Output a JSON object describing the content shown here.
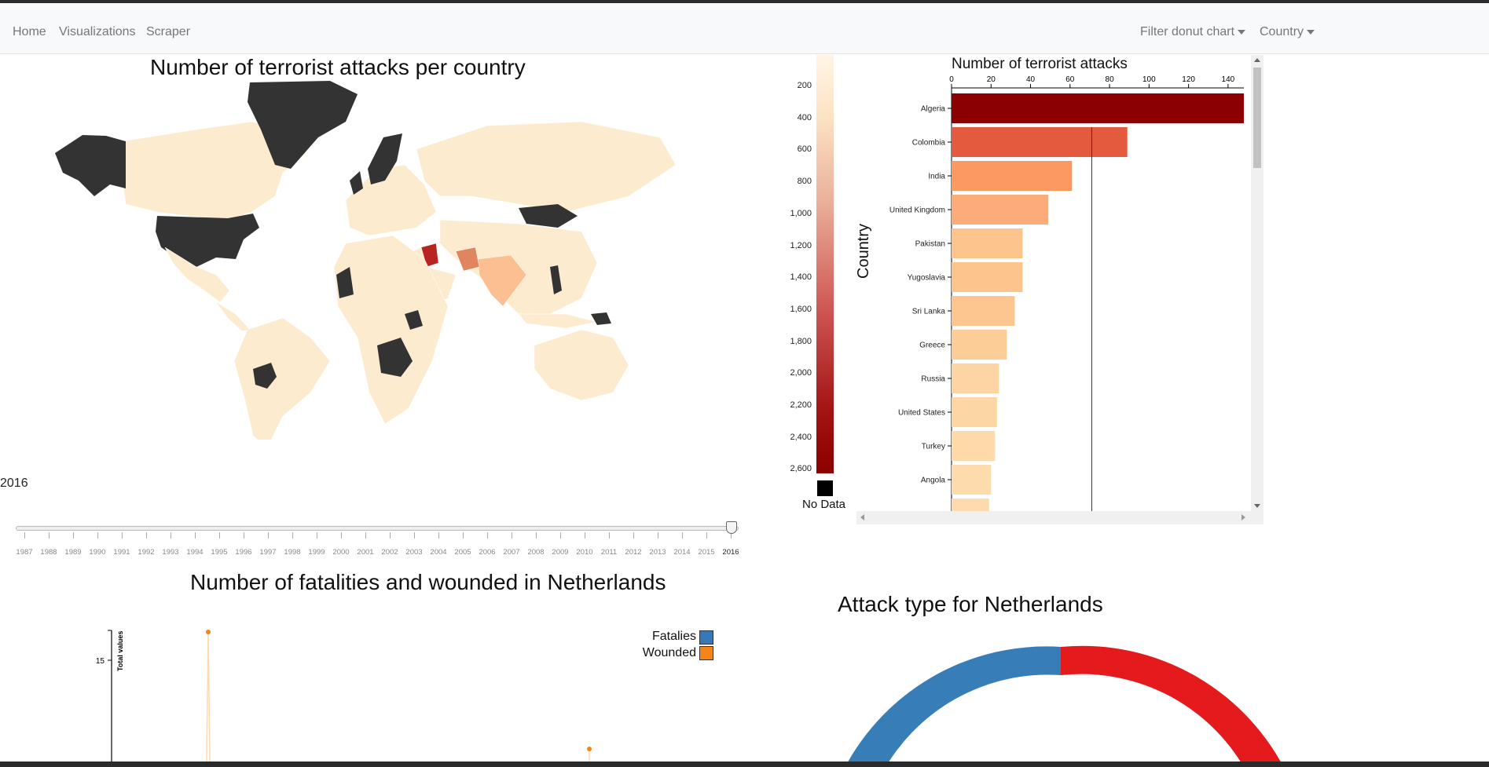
{
  "nav": {
    "home": "Home",
    "visualizations": "Visualizations",
    "scraper": "Scraper",
    "filter_donut": "Filter donut chart",
    "country": "Country"
  },
  "map": {
    "title": "Number of terrorist attacks per country",
    "year": "2016",
    "colors": {
      "nodata": "#333333",
      "low": "#fdebd0",
      "mid": "#f6c9a3",
      "high": "#e0855e",
      "max": "#b8241f"
    }
  },
  "slider": {
    "years": [
      "1987",
      "1988",
      "1989",
      "1990",
      "1991",
      "1992",
      "1993",
      "1994",
      "1995",
      "1996",
      "1997",
      "1998",
      "1999",
      "2000",
      "2001",
      "2002",
      "2003",
      "2004",
      "2005",
      "2006",
      "2007",
      "2008",
      "2009",
      "2010",
      "2011",
      "2012",
      "2013",
      "2014",
      "2015",
      "2016"
    ],
    "selected": "2016"
  },
  "color_legend": {
    "ticks": [
      "200",
      "400",
      "600",
      "800",
      "1,000",
      "1,200",
      "1,400",
      "1,600",
      "1,800",
      "2,000",
      "2,200",
      "2,400",
      "2,600"
    ],
    "no_data": "No Data"
  },
  "chart_data": [
    {
      "type": "bar",
      "title": "Number of terrorist attacks",
      "ylabel": "Country",
      "xlim": [
        0,
        148
      ],
      "xticks": [
        "0",
        "20",
        "40",
        "60",
        "80",
        "100",
        "120",
        "140"
      ],
      "categories": [
        "Algeria",
        "Colombia",
        "India",
        "United Kingdom",
        "Pakistan",
        "Yugoslavia",
        "Sri Lanka",
        "Greece",
        "Russia",
        "United States",
        "Turkey",
        "Angola"
      ],
      "values": [
        148,
        89,
        61,
        49,
        36,
        36,
        32,
        28,
        24,
        23,
        22,
        20
      ],
      "colors": [
        "#8b0000",
        "#e45a3e",
        "#fc9862",
        "#fdab78",
        "#fdc48e",
        "#fdc48e",
        "#fdc690",
        "#fdcd98",
        "#fdd4a4",
        "#fdd6a6",
        "#fed9aa",
        "#fedbad"
      ],
      "reference_line": 71
    },
    {
      "type": "line",
      "title": "Number of fatalities and wounded in Netherlands",
      "ylabel": "Total values",
      "yticks": [
        "15"
      ],
      "series": [
        {
          "name": "Fatalies",
          "color": "#3a78b5"
        },
        {
          "name": "Wounded",
          "color": "#f58518"
        }
      ]
    },
    {
      "type": "pie",
      "title": "Attack type for Netherlands",
      "colors": [
        "#377eb8",
        "#e41a1c"
      ]
    }
  ]
}
